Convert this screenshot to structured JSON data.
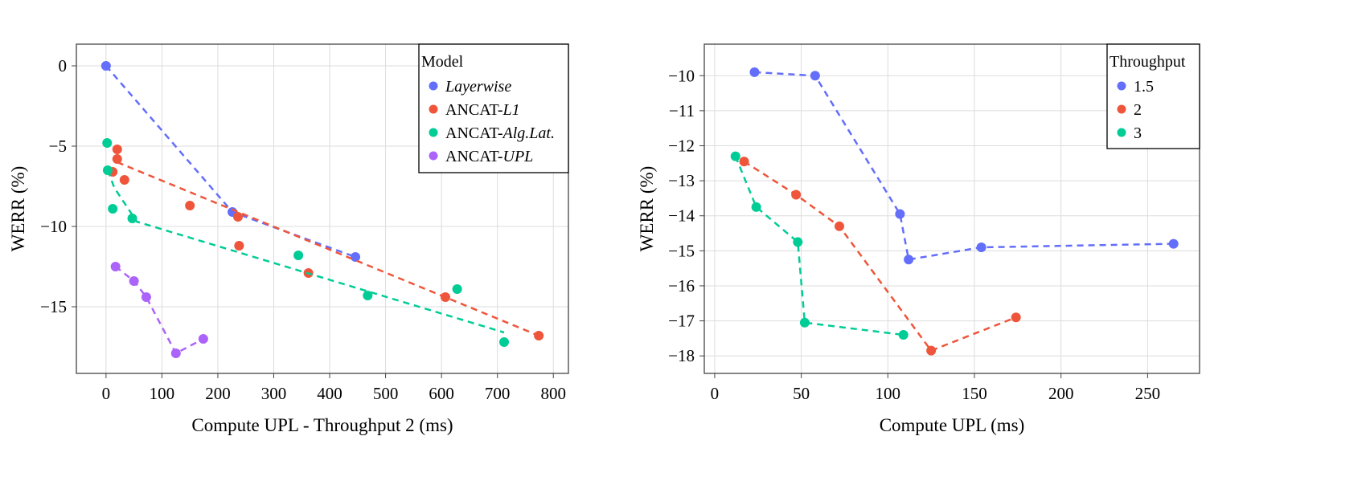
{
  "colors": {
    "blue": "#636efa",
    "red": "#ef553b",
    "green": "#00cc96",
    "purple": "#ab63fa"
  },
  "chart_data": [
    {
      "type": "scatter",
      "xlabel": "Compute UPL - Throughput 2 (ms)",
      "ylabel": "WERR (%)",
      "xlim": [
        -53,
        827
      ],
      "ylim": [
        -19.15,
        1.35
      ],
      "xticks": [
        0,
        100,
        200,
        300,
        400,
        500,
        600,
        700,
        800
      ],
      "yticks": [
        0,
        -5,
        -10,
        -15
      ],
      "grid": true,
      "legend": {
        "title": "Model",
        "placement": "top-right"
      },
      "series": [
        {
          "name": "Layerwise",
          "name_prefix": "",
          "name_italic": "Layerwise",
          "color": "#636efa",
          "points": [
            [
              0,
              0
            ],
            [
              226,
              -9.1
            ],
            [
              446,
              -11.9
            ]
          ],
          "line": [
            [
              0,
              0
            ],
            [
              226,
              -9.1
            ],
            [
              446,
              -11.9
            ]
          ]
        },
        {
          "name": "ANCAT-L1",
          "name_prefix": "ANCAT-",
          "name_italic": "L1",
          "color": "#ef553b",
          "points": [
            [
              20,
              -5.2
            ],
            [
              20,
              -5.8
            ],
            [
              12,
              -6.6
            ],
            [
              33,
              -7.1
            ],
            [
              150,
              -8.7
            ],
            [
              236,
              -9.4
            ],
            [
              238,
              -11.2
            ],
            [
              362,
              -12.9
            ],
            [
              607,
              -14.4
            ],
            [
              774,
              -16.8
            ]
          ],
          "line": [
            [
              20,
              -6.0
            ],
            [
              774,
              -16.8
            ]
          ]
        },
        {
          "name": "ANCAT-Alg.Lat.",
          "name_prefix": "ANCAT-",
          "name_italic": "Alg.Lat.",
          "color": "#00cc96",
          "points": [
            [
              2,
              -4.8
            ],
            [
              3,
              -6.5
            ],
            [
              12,
              -8.9
            ],
            [
              47,
              -9.5
            ],
            [
              344,
              -11.8
            ],
            [
              468,
              -14.3
            ],
            [
              628,
              -13.9
            ],
            [
              712,
              -17.2
            ]
          ],
          "line": [
            [
              3,
              -6.5
            ],
            [
              15,
              -7.6
            ],
            [
              55,
              -9.7
            ],
            [
              712,
              -16.6
            ]
          ]
        },
        {
          "name": "ANCAT-UPL",
          "name_prefix": "ANCAT-",
          "name_italic": "UPL",
          "color": "#ab63fa",
          "points": [
            [
              17,
              -12.5
            ],
            [
              50,
              -13.4
            ],
            [
              72,
              -14.4
            ],
            [
              125,
              -17.9
            ],
            [
              174,
              -17.0
            ]
          ],
          "line": [
            [
              17,
              -12.5
            ],
            [
              50,
              -13.4
            ],
            [
              72,
              -14.4
            ],
            [
              125,
              -17.9
            ],
            [
              174,
              -17.0
            ]
          ]
        }
      ]
    },
    {
      "type": "scatter",
      "xlabel": "Compute UPL (ms)",
      "ylabel": "WERR (%)",
      "xlim": [
        -6,
        280
      ],
      "ylim": [
        -18.5,
        -9.1
      ],
      "xticks": [
        0,
        50,
        100,
        150,
        200,
        250
      ],
      "yticks": [
        -10,
        -11,
        -12,
        -13,
        -14,
        -15,
        -16,
        -17,
        -18
      ],
      "grid": true,
      "legend": {
        "title": "Throughput",
        "placement": "top-right"
      },
      "series": [
        {
          "name": "1.5",
          "name_prefix": "1.5",
          "name_italic": "",
          "color": "#636efa",
          "points": [
            [
              23,
              -9.9
            ],
            [
              58,
              -10.0
            ],
            [
              107,
              -13.95
            ],
            [
              112,
              -15.25
            ],
            [
              154,
              -14.9
            ],
            [
              265,
              -14.8
            ]
          ]
        },
        {
          "name": "2",
          "name_prefix": "2",
          "name_italic": "",
          "color": "#ef553b",
          "points": [
            [
              17,
              -12.45
            ],
            [
              47,
              -13.4
            ],
            [
              72,
              -14.3
            ],
            [
              125,
              -17.85
            ],
            [
              174,
              -16.9
            ]
          ]
        },
        {
          "name": "3",
          "name_prefix": "3",
          "name_italic": "",
          "color": "#00cc96",
          "points": [
            [
              12,
              -12.3
            ],
            [
              24,
              -13.75
            ],
            [
              48,
              -14.75
            ],
            [
              52,
              -17.05
            ],
            [
              109,
              -17.4
            ]
          ]
        }
      ]
    }
  ]
}
